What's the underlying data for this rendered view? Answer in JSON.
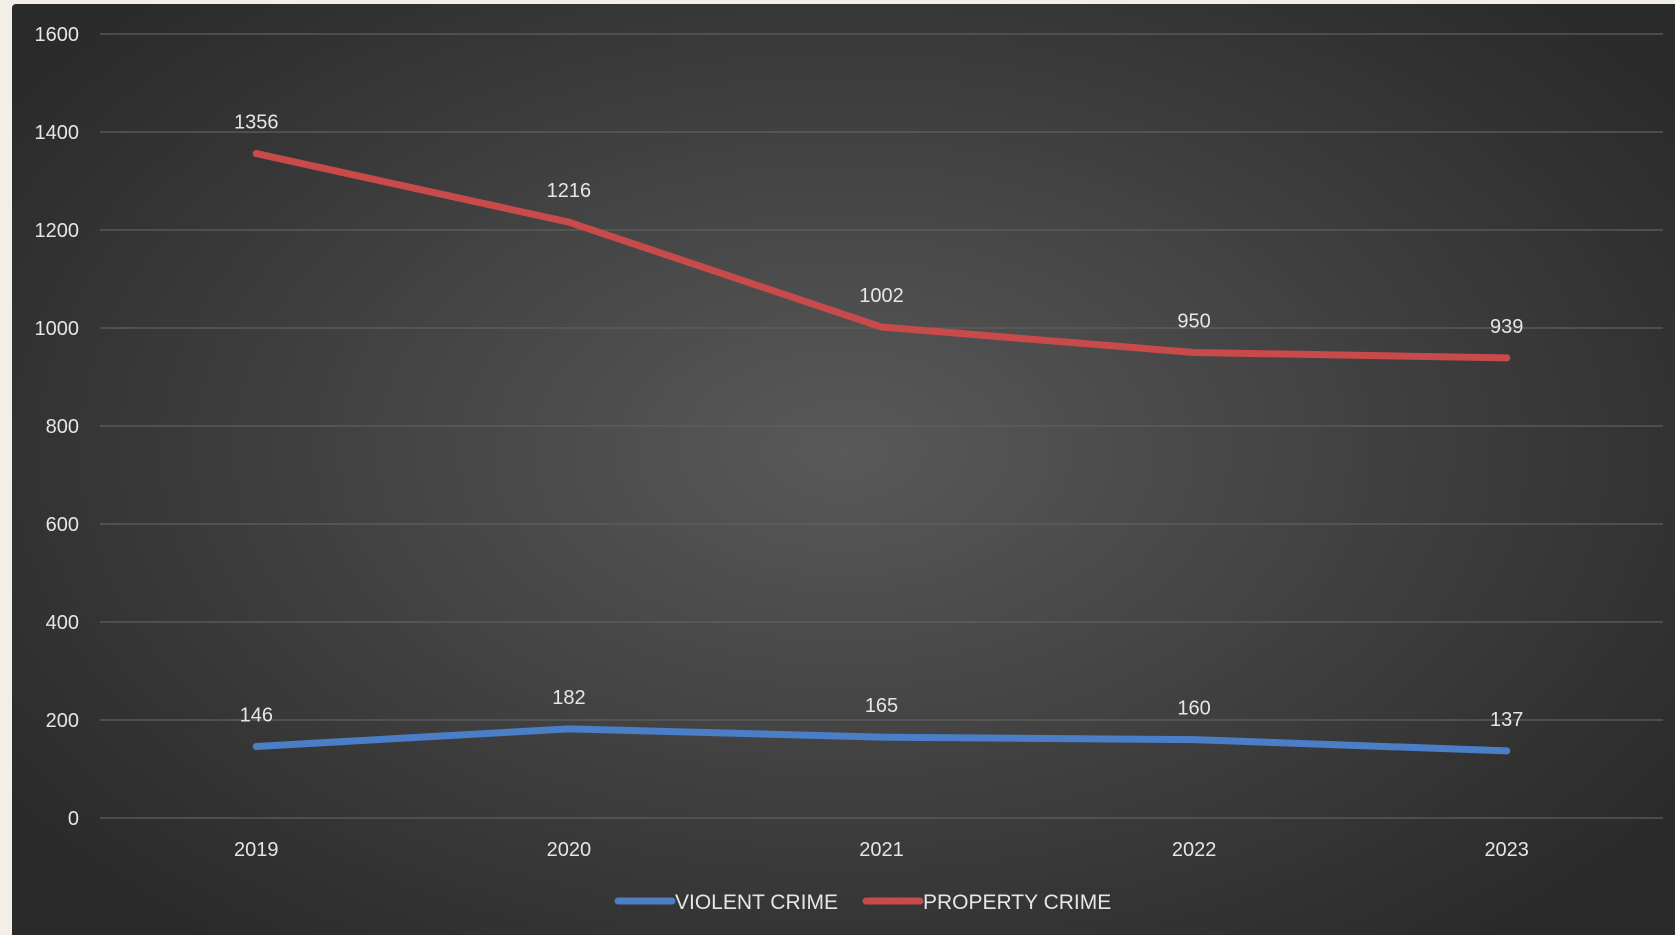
{
  "chart_data": {
    "type": "line",
    "title": "",
    "xlabel": "",
    "ylabel": "",
    "categories": [
      "2019",
      "2020",
      "2021",
      "2022",
      "2023"
    ],
    "ylim": [
      0,
      1600
    ],
    "yticks": [
      0,
      200,
      400,
      600,
      800,
      1000,
      1200,
      1400,
      1600
    ],
    "grid": true,
    "legend_position": "bottom",
    "series": [
      {
        "name": "VIOLENT CRIME",
        "color": "#4a7ec6",
        "values": [
          146,
          182,
          165,
          160,
          137
        ]
      },
      {
        "name": "PROPERTY CRIME",
        "color": "#c84a4a",
        "values": [
          1356,
          1216,
          1002,
          950,
          939
        ]
      }
    ]
  }
}
